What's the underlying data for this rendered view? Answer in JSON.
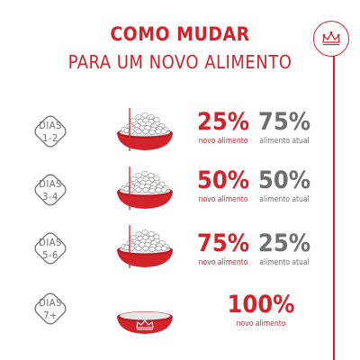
{
  "header": {
    "title_line1": "COMO MUDAR",
    "title_line2": "PARA UM NOVO ALIMENTO"
  },
  "logo": {
    "icon": "crown-icon"
  },
  "colors": {
    "brand_red": "#d2232a",
    "gray": "#6d6e71"
  },
  "steps": [
    {
      "label": "DIAS",
      "days": "1-2",
      "new_percent": "25%",
      "new_caption": "novo alimento",
      "old_percent": "75%",
      "old_caption": "alimento atual",
      "new_fraction": 0.25
    },
    {
      "label": "DIAS",
      "days": "3-4",
      "new_percent": "50%",
      "new_caption": "novo alimento",
      "old_percent": "50%",
      "old_caption": "alimento atual",
      "new_fraction": 0.5
    },
    {
      "label": "DIAS",
      "days": "5-6",
      "new_percent": "75%",
      "new_caption": "novo alimento",
      "old_percent": "25%",
      "old_caption": "alimento atual",
      "new_fraction": 0.75
    },
    {
      "label": "DIAS",
      "days": "7+",
      "new_percent": "100%",
      "new_caption": "novo alimento",
      "new_fraction": 1.0
    }
  ]
}
